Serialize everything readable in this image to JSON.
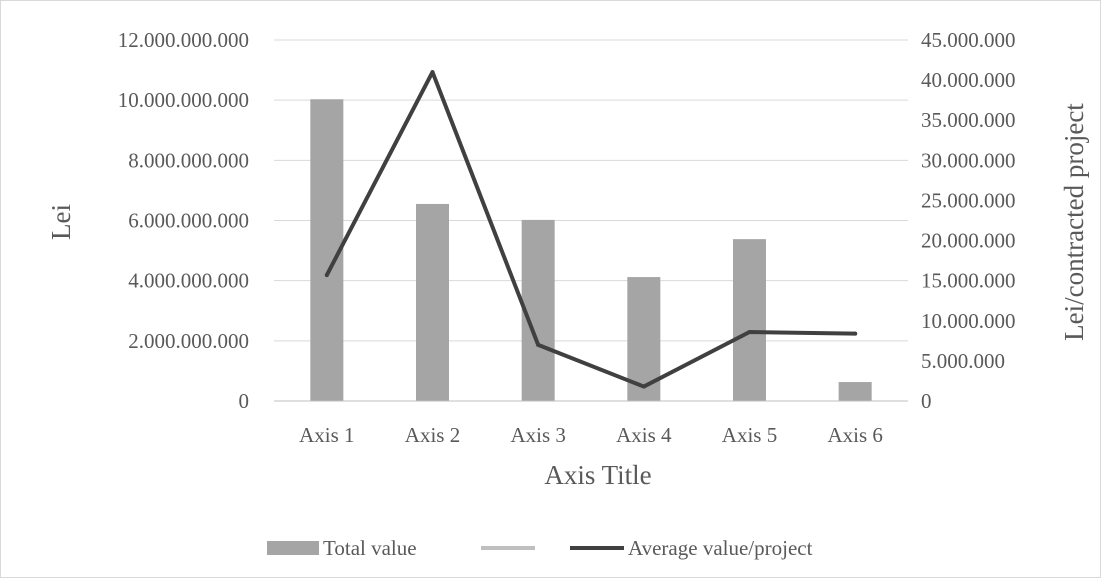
{
  "chart_data": {
    "type": "bar",
    "categories": [
      "Axis 1",
      "Axis 2",
      "Axis 3",
      "Axis 4",
      "Axis 5",
      "Axis 6"
    ],
    "series": [
      {
        "name": "Total value",
        "type": "bar",
        "axis": "left",
        "color": "#a5a5a5",
        "values": [
          10030000000,
          6550000000,
          6020000000,
          4120000000,
          5380000000,
          630000000
        ]
      },
      {
        "name": "Average value/project",
        "type": "line",
        "axis": "right",
        "color": "#404040",
        "values": [
          15700000,
          41000000,
          7000000,
          1800000,
          8600000,
          8400000
        ]
      }
    ],
    "legend_extra_entry_color": "#bfbfbf",
    "xlabel": "Axis Title",
    "ylabel": "Lei",
    "y2label": "Lei/contracted project",
    "ylim": [
      0,
      12000000000
    ],
    "y2lim": [
      0,
      45000000
    ],
    "yticks": [
      "0",
      "2.000.000.000",
      "4.000.000.000",
      "6.000.000.000",
      "8.000.000.000",
      "10.000.000.000",
      "12.000.000.000"
    ],
    "y2ticks": [
      "0",
      "5.000.000",
      "10.000.000",
      "15.000.000",
      "20.000.000",
      "25.000.000",
      "30.000.000",
      "35.000.000",
      "40.000.000",
      "45.000.000"
    ],
    "grid": true,
    "legend_position": "bottom"
  }
}
